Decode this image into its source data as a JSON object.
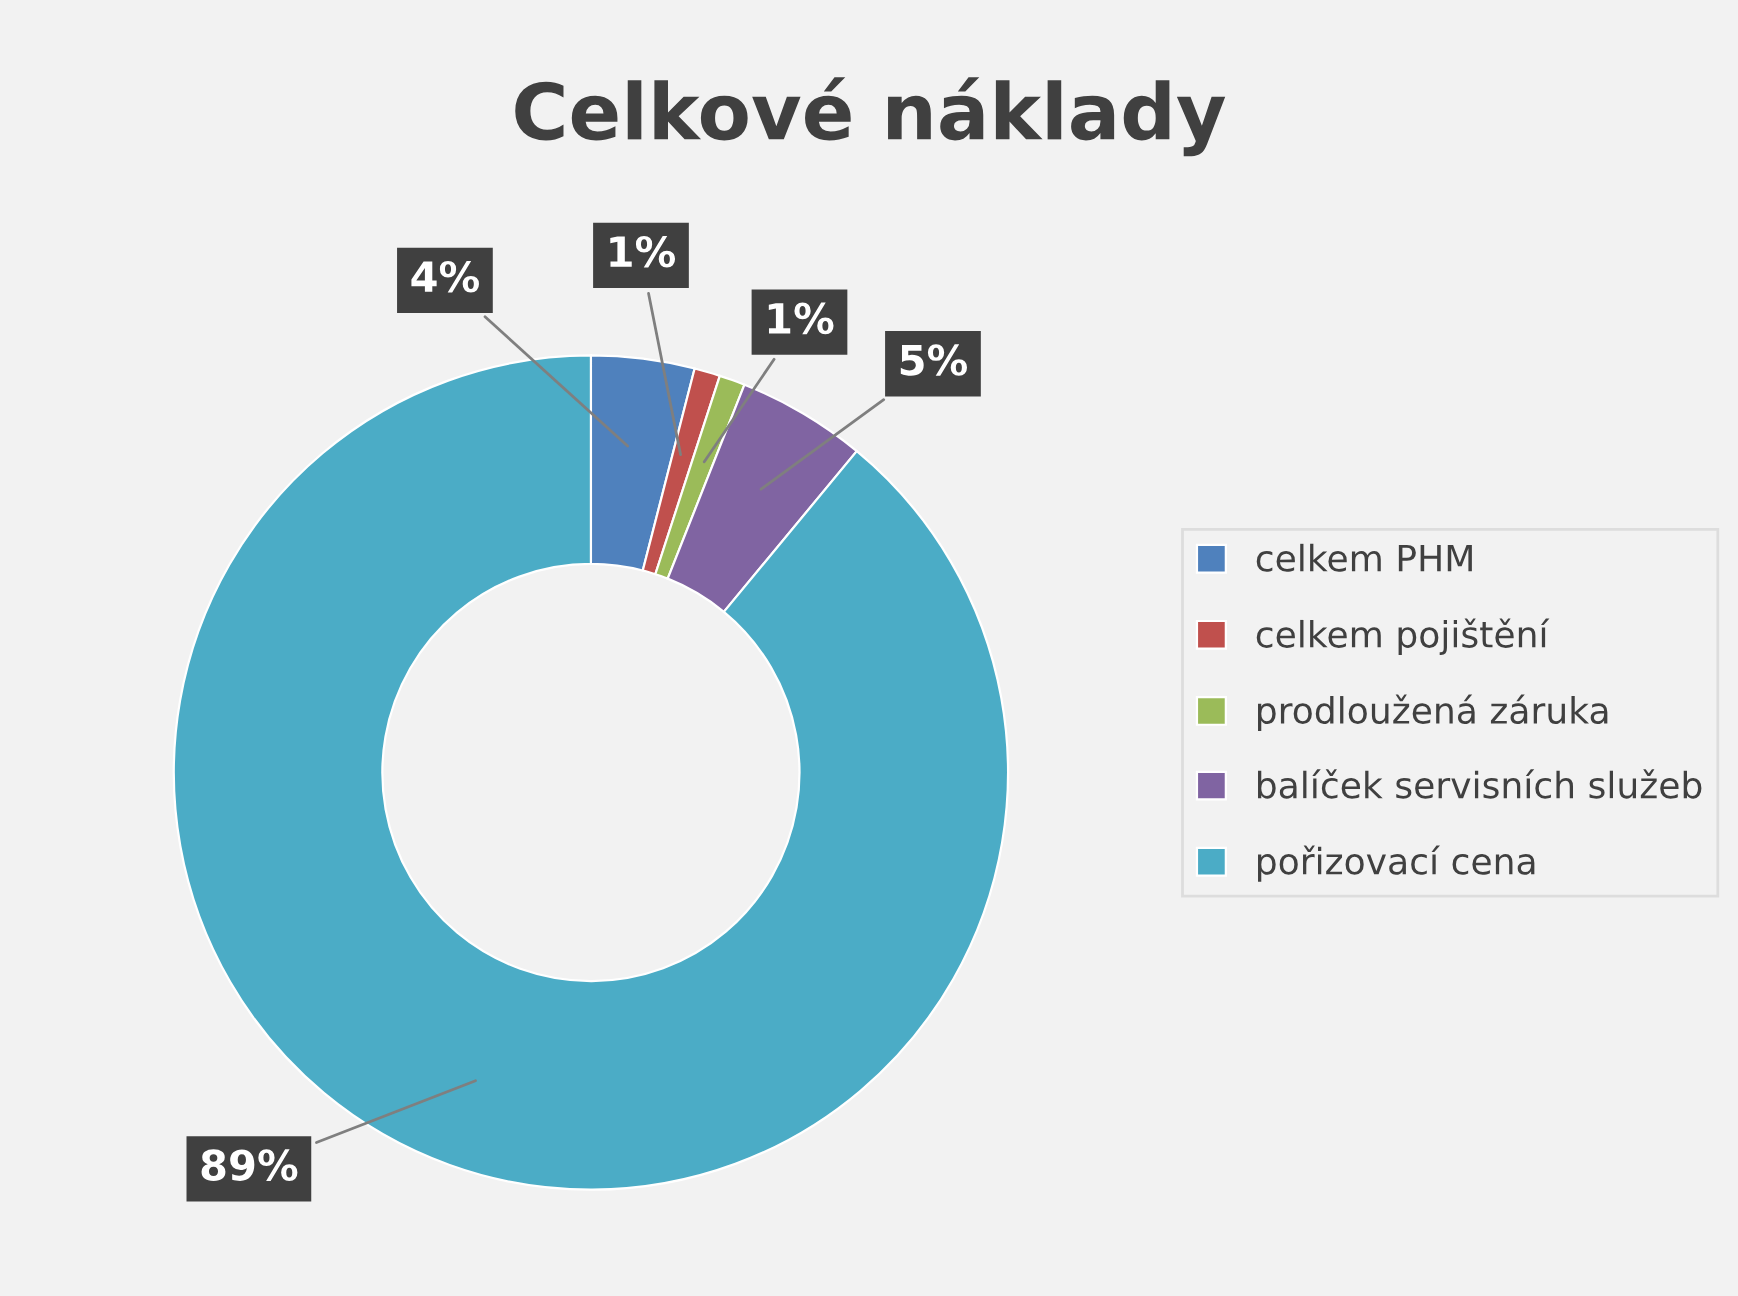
{
  "chart_data": {
    "type": "donut",
    "title": "Celkové náklady",
    "categories": [
      "celkem PHM",
      "celkem pojištění",
      "prodloužená záruka",
      "balíček servisních služeb",
      "pořizovací cena"
    ],
    "values": [
      4,
      1,
      1,
      5,
      89
    ],
    "colors": [
      "#4f81bd",
      "#c0504d",
      "#9bbb59",
      "#8064a2",
      "#4bacc6"
    ],
    "value_labels": [
      "4%",
      "1%",
      "1%",
      "5%",
      "89%"
    ],
    "legend": "right"
  }
}
